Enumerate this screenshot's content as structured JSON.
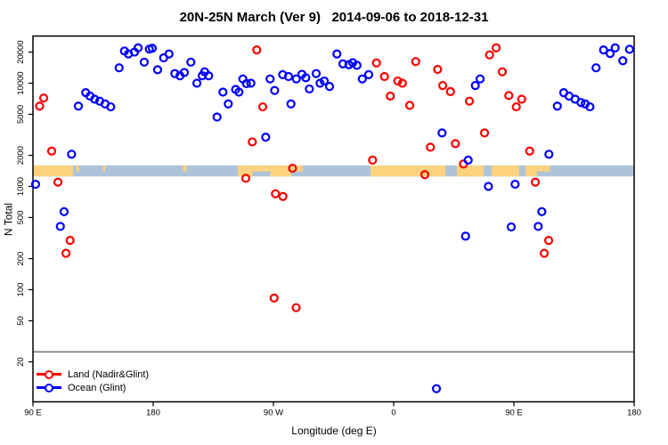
{
  "title": "20N-25N March (Ver 9)   2014-09-06 to 2018-12-31",
  "chart_data": {
    "type": "scatter",
    "title": "20N-25N March (Ver 9)   2014-09-06 to 2018-12-31",
    "xlabel": "Longitude (deg E)",
    "ylabel": "N Total",
    "x_axis": {
      "note": "longitude axis starts at 90E and runs eastward, wrapping: 90E,180,90W,0,90E,180; values stored as degrees east of 0 extended 90..540",
      "start_deg": 90,
      "end_deg": 540,
      "ticks": [
        {
          "deg": 90,
          "label": "90 E"
        },
        {
          "deg": 180,
          "label": "180"
        },
        {
          "deg": 270,
          "label": "90 W"
        },
        {
          "deg": 360,
          "label": "0"
        },
        {
          "deg": 450,
          "label": "90 E"
        },
        {
          "deg": 540,
          "label": "180"
        }
      ]
    },
    "y_axis": {
      "scale": "log",
      "min": 8,
      "max": 28000,
      "ticks": [
        20,
        50,
        100,
        200,
        500,
        1000,
        2000,
        5000,
        10000,
        20000
      ]
    },
    "threshold_line": {
      "n_value": 25,
      "color": "#808080"
    },
    "land_ocean_strip": {
      "n_top": 1600,
      "n_bottom": 1250,
      "ocean_color": "#aec3da",
      "land_color": "#fbd37f",
      "land_segments_deg": [
        [
          90,
          120
        ],
        [
          243.3,
          254.5
        ],
        [
          267.8,
          283.3
        ],
        [
          342.7,
          398.7
        ],
        [
          407.3,
          427.3
        ],
        [
          433.3,
          454
        ],
        [
          458.7,
          467.3
        ]
      ],
      "island_segments_deg": [
        [
          122.5,
          124.5
        ],
        [
          142.5,
          144
        ],
        [
          202.5,
          205
        ],
        [
          254.5,
          267.8
        ],
        [
          283.3,
          292
        ],
        [
          467.3,
          477
        ]
      ]
    },
    "legend": {
      "position": "bottom-left",
      "entries": [
        {
          "label": "Land (Nadir&Glint)",
          "color": "#ff0000"
        },
        {
          "label": "Ocean (Glint)",
          "color": "#0000ff"
        }
      ]
    },
    "point_format": [
      "lon_deg_axis",
      "n_total"
    ],
    "series": [
      {
        "name": "Land (Nadir&Glint)",
        "color": "#ff0000",
        "marker": "open-circle",
        "points": [
          [
            95,
            6000
          ],
          [
            98,
            7200
          ],
          [
            104,
            2200
          ],
          [
            108.7,
            1100
          ],
          [
            114.7,
            225
          ],
          [
            117.8,
            300
          ],
          [
            249.3,
            1200
          ],
          [
            254.2,
            2700
          ],
          [
            257.5,
            21000
          ],
          [
            262,
            5900
          ],
          [
            270.5,
            83
          ],
          [
            271.5,
            850
          ],
          [
            277.1,
            800
          ],
          [
            284.3,
            1500
          ],
          [
            287,
            67
          ],
          [
            344.2,
            1800
          ],
          [
            347.1,
            15700
          ],
          [
            353.1,
            11600
          ],
          [
            357.5,
            7500
          ],
          [
            363.1,
            10500
          ],
          [
            366.5,
            10000
          ],
          [
            372,
            6100
          ],
          [
            376.5,
            16200
          ],
          [
            383.3,
            1300
          ],
          [
            387.5,
            2400
          ],
          [
            392.9,
            13600
          ],
          [
            396.7,
            9500
          ],
          [
            402.5,
            8300
          ],
          [
            406.2,
            2600
          ],
          [
            412.2,
            1650
          ],
          [
            416.7,
            6700
          ],
          [
            428,
            3300
          ],
          [
            431.8,
            18800
          ],
          [
            436.7,
            22000
          ],
          [
            441.3,
            12900
          ],
          [
            446.2,
            7600
          ],
          [
            451.8,
            5900
          ],
          [
            455.8,
            7000
          ],
          [
            461.8,
            2200
          ],
          [
            466,
            1100
          ],
          [
            472.7,
            225
          ],
          [
            476,
            300
          ]
        ]
      },
      {
        "name": "Ocean (Glint)",
        "color": "#0000ff",
        "marker": "open-circle",
        "points": [
          [
            92,
            1050
          ],
          [
            110.5,
            410
          ],
          [
            113.3,
            570
          ],
          [
            118.9,
            2050
          ],
          [
            124,
            6000
          ],
          [
            129.5,
            8100
          ],
          [
            132.7,
            7500
          ],
          [
            136.2,
            7000
          ],
          [
            140,
            6700
          ],
          [
            144,
            6300
          ],
          [
            148.2,
            5900
          ],
          [
            154.5,
            14100
          ],
          [
            158.5,
            20500
          ],
          [
            161.5,
            19200
          ],
          [
            166,
            20000
          ],
          [
            168.7,
            22000
          ],
          [
            173.3,
            16000
          ],
          [
            177.1,
            21400
          ],
          [
            179.3,
            21800
          ],
          [
            183.3,
            13500
          ],
          [
            187.8,
            17600
          ],
          [
            191.8,
            19200
          ],
          [
            196.2,
            12400
          ],
          [
            200,
            11800
          ],
          [
            203.3,
            12700
          ],
          [
            208.2,
            16000
          ],
          [
            212.7,
            10000
          ],
          [
            216.7,
            11800
          ],
          [
            218.5,
            12900
          ],
          [
            221.5,
            11800
          ],
          [
            227.8,
            4700
          ],
          [
            232.2,
            8200
          ],
          [
            236.2,
            6300
          ],
          [
            241.7,
            8700
          ],
          [
            244.2,
            8200
          ],
          [
            247.1,
            11000
          ],
          [
            249.8,
            9900
          ],
          [
            253.1,
            10000
          ],
          [
            264.2,
            3000
          ],
          [
            267.5,
            11000
          ],
          [
            270.9,
            8500
          ],
          [
            276.9,
            12100
          ],
          [
            281.3,
            11600
          ],
          [
            283.1,
            6300
          ],
          [
            287.1,
            11000
          ],
          [
            291.3,
            12200
          ],
          [
            294.2,
            11300
          ],
          [
            296.9,
            8800
          ],
          [
            302,
            12400
          ],
          [
            304.9,
            10000
          ],
          [
            308,
            10500
          ],
          [
            312,
            9300
          ],
          [
            317.5,
            19200
          ],
          [
            322,
            15400
          ],
          [
            326.5,
            15100
          ],
          [
            329.3,
            15800
          ],
          [
            332.5,
            14900
          ],
          [
            336.5,
            11000
          ],
          [
            341.3,
            12100
          ],
          [
            392,
            11
          ],
          [
            396.2,
            3300
          ],
          [
            413.8,
            330
          ],
          [
            415.8,
            1800
          ],
          [
            421.1,
            9500
          ],
          [
            424.7,
            11000
          ],
          [
            430.9,
            1000
          ],
          [
            448,
            405
          ],
          [
            450.9,
            1050
          ],
          [
            468.2,
            410
          ],
          [
            470.9,
            570
          ],
          [
            476.2,
            2050
          ],
          [
            482.5,
            6000
          ],
          [
            487.3,
            8100
          ],
          [
            491.3,
            7500
          ],
          [
            495.8,
            7000
          ],
          [
            500.2,
            6500
          ],
          [
            503.3,
            6300
          ],
          [
            506.9,
            5900
          ],
          [
            511.5,
            14100
          ],
          [
            517.1,
            21000
          ],
          [
            522,
            19400
          ],
          [
            525.8,
            22000
          ],
          [
            531.5,
            16500
          ],
          [
            536.5,
            21300
          ]
        ]
      }
    ]
  }
}
